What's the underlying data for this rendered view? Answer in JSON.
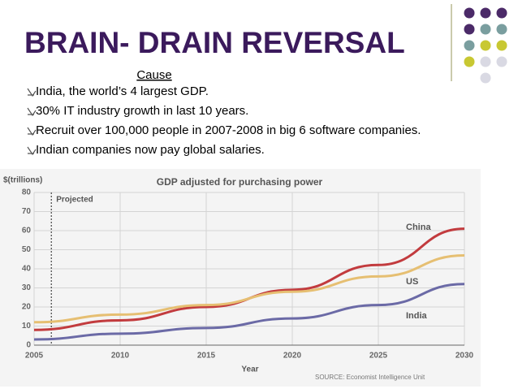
{
  "slide": {
    "title": "BRAIN- DRAIN REVERSAL",
    "subtitle": "Cause",
    "bullets": [
      "India, the world’s 4 largest GDP.",
      "30% IT industry growth in last 10 years.",
      "Recruit over 100,000 people in 2007-2008 in big 6 software companies.",
      "Indian companies now pay global salaries."
    ]
  },
  "chart_data": {
    "type": "line",
    "title": "GDP adjusted for purchasing power",
    "ylabel": "$(trillions)",
    "xlabel": "Year",
    "annotation": "Projected",
    "projected_from": 2006,
    "source": "SOURCE: Economist Intelligence Unit",
    "x": [
      2005,
      2010,
      2015,
      2020,
      2025,
      2030
    ],
    "series": [
      {
        "name": "China",
        "color": "#c23b3e",
        "values": [
          8,
          13,
          20,
          29,
          42,
          61
        ]
      },
      {
        "name": "US",
        "color": "#e6bf72",
        "values": [
          12,
          16,
          21,
          28,
          36,
          47
        ]
      },
      {
        "name": "India",
        "color": "#6b6aa6",
        "values": [
          3,
          6,
          9,
          14,
          21,
          32
        ]
      }
    ],
    "xlim": [
      2005,
      2030
    ],
    "xticks": [
      2005,
      2010,
      2015,
      2020,
      2025,
      2030
    ],
    "ylim": [
      0,
      80
    ],
    "yticks": [
      0,
      10,
      20,
      30,
      40,
      50,
      60,
      70,
      80
    ],
    "grid": true
  }
}
